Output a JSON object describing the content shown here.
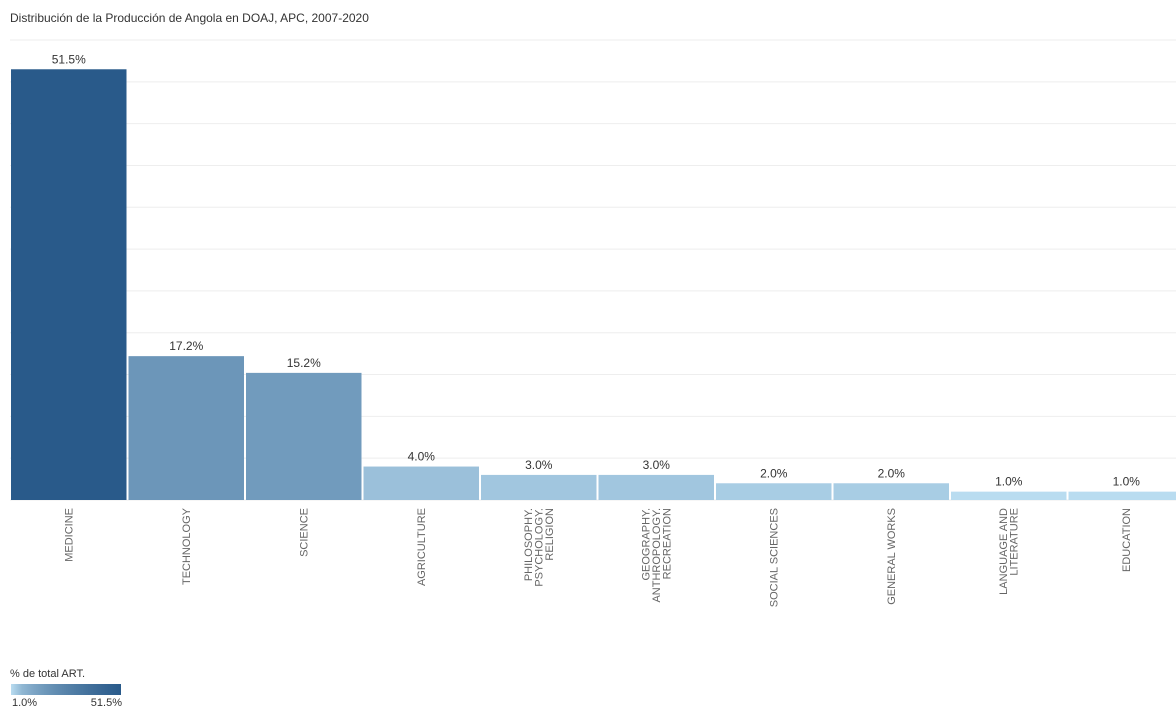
{
  "title": "Distribución de la Producción de Angola en DOAJ, APC, 2007-2020",
  "colors": {
    "low": "#b9dcf0",
    "high": "#295a8a",
    "grid": "#eeeeee",
    "text": "#333333",
    "tick": "#666666"
  },
  "legend": {
    "title": "% de total ART.",
    "min_label": "1.0%",
    "max_label": "51.5%"
  },
  "chart_data": {
    "type": "bar",
    "title": "Distribución de la Producción de Angola en DOAJ, APC, 2007-2020",
    "categories": [
      [
        "MEDICINE"
      ],
      [
        "TECHNOLOGY"
      ],
      [
        "SCIENCE"
      ],
      [
        "AGRICULTURE"
      ],
      [
        "PHILOSOPHY.",
        "PSYCHOLOGY.",
        "RELIGION"
      ],
      [
        "GEOGRAPHY.",
        "ANTHROPOLOGY.",
        "RECREATION"
      ],
      [
        "SOCIAL SCIENCES"
      ],
      [
        "GENERAL WORKS"
      ],
      [
        "LANGUAGE AND",
        "LITERATURE"
      ],
      [
        "EDUCATION"
      ]
    ],
    "values": [
      51.5,
      17.2,
      15.2,
      4.0,
      3.0,
      3.0,
      2.0,
      2.0,
      1.0,
      1.0
    ],
    "value_labels": [
      "51.5%",
      "17.2%",
      "15.2%",
      "4.0%",
      "3.0%",
      "3.0%",
      "2.0%",
      "2.0%",
      "1.0%",
      "1.0%"
    ],
    "ylim": [
      0,
      55
    ],
    "grid": true,
    "legend": "bottom-left",
    "color_scale": {
      "min": 1.0,
      "max": 51.5
    }
  }
}
